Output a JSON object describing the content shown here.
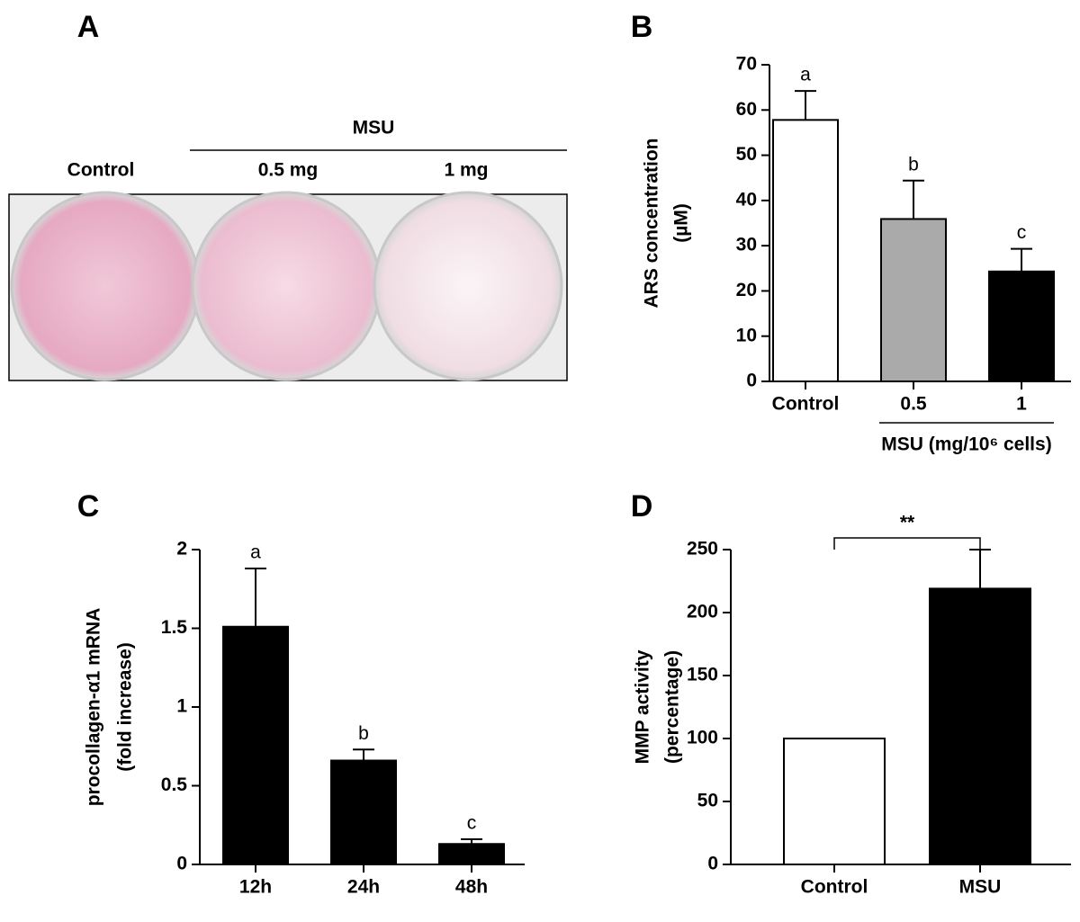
{
  "panel_a": {
    "label": "A",
    "group": "MSU",
    "wells": [
      "Control",
      "0.5 mg",
      "1 mg"
    ]
  },
  "chart_data": [
    {
      "type": "bar",
      "panel": "B",
      "ylabel": [
        "ARS concentration",
        "(µM)"
      ],
      "categories": [
        "Control",
        "0.5",
        "1"
      ],
      "values": [
        57.8,
        35.9,
        24.3
      ],
      "errors": [
        6.4,
        8.5,
        5.0
      ],
      "colors": [
        "#ffffff",
        "#aaaaaa",
        "#000000"
      ],
      "annotations": [
        "a",
        "b",
        "c"
      ],
      "group_label": "MSU (mg/10⁶ cells)",
      "ylim": [
        0,
        70
      ],
      "yticks": [
        0,
        10,
        20,
        30,
        40,
        50,
        60,
        70
      ]
    },
    {
      "type": "bar",
      "panel": "C",
      "ylabel": [
        "procollagen-α1 mRNA",
        "(fold increase)"
      ],
      "categories": [
        "12h",
        "24h",
        "48h"
      ],
      "values": [
        1.51,
        0.66,
        0.13
      ],
      "errors": [
        0.37,
        0.07,
        0.03
      ],
      "colors": [
        "#000000",
        "#000000",
        "#000000"
      ],
      "annotations": [
        "a",
        "b",
        "c"
      ],
      "ylim": [
        0,
        2
      ],
      "yticks": [
        0,
        0.5,
        1,
        1.5,
        2
      ]
    },
    {
      "type": "bar",
      "panel": "D",
      "ylabel": [
        "MMP activity",
        "(percentage)"
      ],
      "categories": [
        "Control",
        "MSU"
      ],
      "values": [
        100,
        219
      ],
      "errors": [
        null,
        31
      ],
      "colors": [
        "#ffffff",
        "#000000"
      ],
      "significance": "**",
      "ylim": [
        0,
        250
      ],
      "yticks": [
        0,
        50,
        100,
        150,
        200,
        250
      ]
    }
  ]
}
